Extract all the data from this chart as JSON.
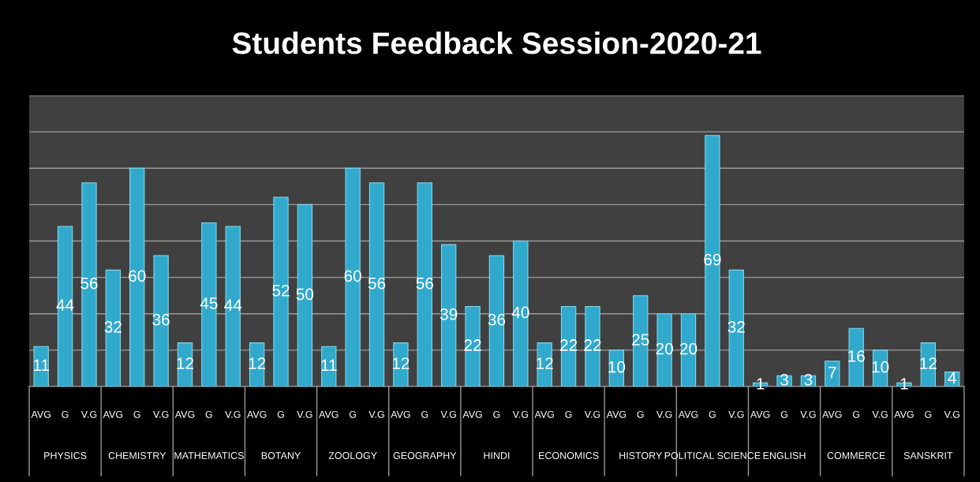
{
  "chart_data": {
    "type": "bar",
    "title": "Students Feedback Session-2020-21",
    "categories": [
      "AVG",
      "G",
      "V.G",
      "AVG",
      "G",
      "V.G",
      "AVG",
      "G",
      "V.G",
      "AVG",
      "G",
      "V.G",
      "AVG",
      "G",
      "V.G",
      "AVG",
      "G",
      "V.G",
      "AVG",
      "G",
      "V.G",
      "AVG",
      "G",
      "V.G",
      "AVG",
      "G",
      "V.G",
      "AVG",
      "G",
      "V.G",
      "AVG",
      "G",
      "V.G",
      "AVG",
      "G",
      "V.G",
      "AVG",
      "G",
      "V.G"
    ],
    "values": [
      11,
      44,
      56,
      32,
      60,
      36,
      12,
      45,
      44,
      12,
      52,
      50,
      11,
      60,
      56,
      12,
      56,
      39,
      22,
      36,
      40,
      12,
      22,
      22,
      10,
      25,
      20,
      20,
      69,
      32,
      1,
      3,
      3,
      7,
      16,
      10,
      1,
      12,
      4
    ],
    "color": "#31a9cc",
    "annotations": [
      "PHYSICS",
      "CHEMISTRY",
      "MATHEMATICS",
      "BOTANY",
      "ZOOLOGY",
      "GEOGRAPHY",
      "HINDI",
      "ECONOMICS",
      "HISTORY",
      "POLITICAL SCIENCE",
      "ENGLISH",
      "COMMERCE",
      "SANSKRIT"
    ],
    "ylim": [
      0,
      80
    ],
    "yticks": [
      {
        "value": 0,
        "label": null
      },
      {
        "value": 10,
        "label": null
      },
      {
        "value": 20,
        "label": null
      },
      {
        "value": 30,
        "label": null
      },
      {
        "value": 40,
        "label": null
      },
      {
        "value": 50,
        "label": null
      },
      {
        "value": 60,
        "label": null
      },
      {
        "value": 70,
        "label": null
      },
      {
        "value": 80,
        "label": null
      }
    ],
    "grid": "y",
    "data_labels": true
  }
}
